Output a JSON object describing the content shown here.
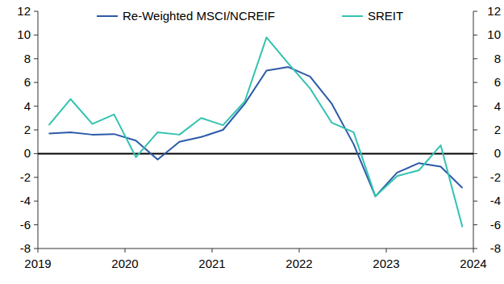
{
  "chart_data": {
    "type": "line",
    "x": [
      2019.125,
      2019.375,
      2019.625,
      2019.875,
      2020.125,
      2020.375,
      2020.625,
      2020.875,
      2021.125,
      2021.375,
      2021.625,
      2021.875,
      2022.125,
      2022.375,
      2022.625,
      2022.875,
      2023.125,
      2023.375,
      2023.625,
      2023.875
    ],
    "series": [
      {
        "name": "Re-Weighted MSCI/NCREIF",
        "color": "#2c5aa8",
        "values": [
          1.7,
          1.8,
          1.6,
          1.65,
          1.1,
          -0.5,
          1.0,
          1.4,
          2.0,
          4.2,
          7.0,
          7.3,
          6.5,
          4.2,
          0.8,
          -3.6,
          -1.6,
          -0.8,
          -1.1,
          -2.9
        ]
      },
      {
        "name": "SREIT",
        "color": "#33c2b0",
        "values": [
          2.4,
          4.6,
          2.5,
          3.3,
          -0.3,
          1.8,
          1.6,
          3.0,
          2.4,
          4.4,
          9.8,
          7.6,
          5.5,
          2.6,
          1.8,
          -3.6,
          -1.9,
          -1.4,
          0.7,
          -6.2
        ]
      }
    ],
    "xlim": [
      2019,
      2024
    ],
    "xticks": [
      2019,
      2020,
      2021,
      2022,
      2023,
      2024
    ],
    "ylim": [
      -8,
      12
    ],
    "yticks": [
      -8,
      -6,
      -4,
      -2,
      0,
      2,
      4,
      6,
      8,
      10,
      12
    ],
    "y2lim": [
      -8,
      12
    ],
    "y2ticks": [
      -8,
      -6,
      -4,
      -2,
      0,
      2,
      4,
      6,
      8,
      10,
      12
    ],
    "grid": false,
    "legend": "top"
  }
}
